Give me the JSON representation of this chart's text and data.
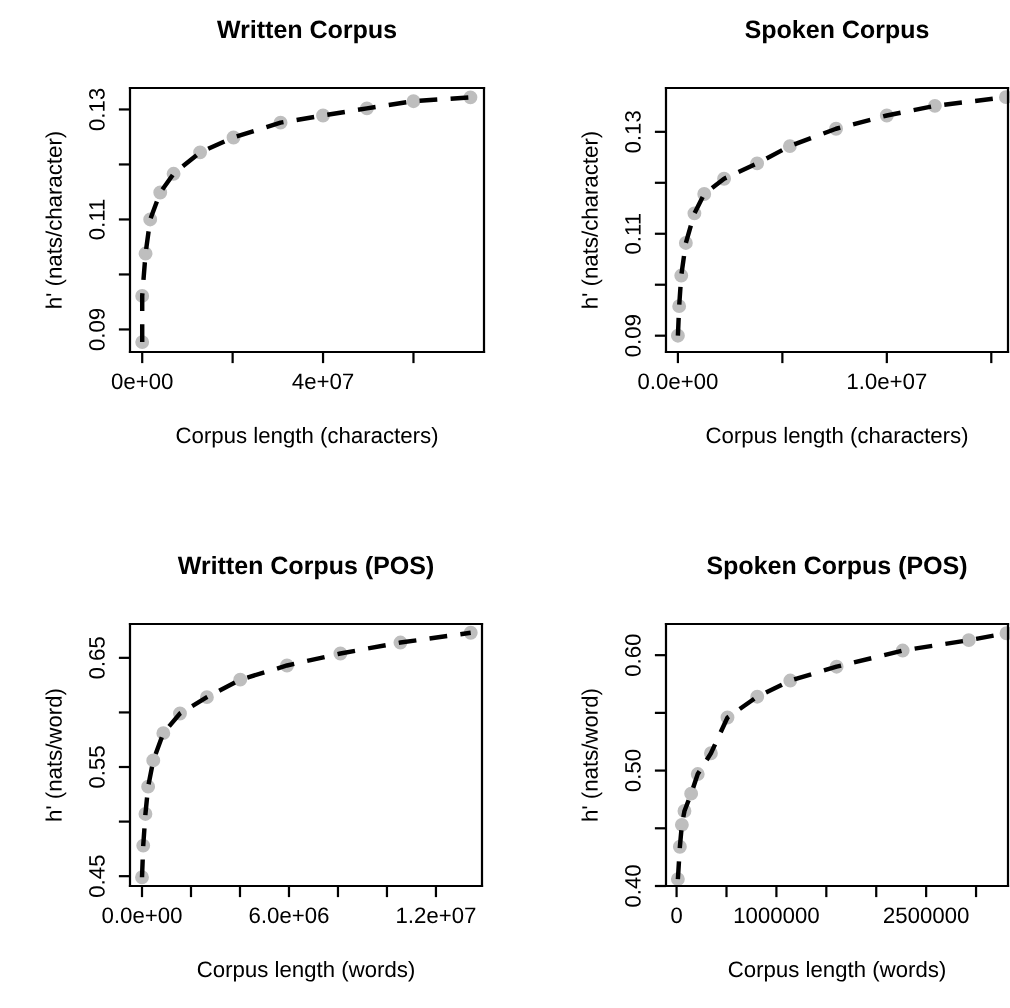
{
  "chart_data": [
    {
      "type": "line",
      "title": "Written Corpus",
      "xlabel": "Corpus length (characters)",
      "ylabel": "h' (nats/character)",
      "xlim": [
        -2700000,
        75600000
      ],
      "ylim": [
        0.0859,
        0.1339
      ],
      "xticks": [
        {
          "value": 0,
          "label": "0e+00"
        },
        {
          "value": 20000000,
          "label": null
        },
        {
          "value": 40000000,
          "label": "4e+07"
        },
        {
          "value": 60000000,
          "label": null
        }
      ],
      "yticks": [
        0.09,
        {
          "value": 0.1,
          "label": null
        },
        0.11,
        {
          "value": 0.12,
          "label": null
        },
        0.13
      ],
      "x": [
        0,
        0,
        740000,
        1770000,
        3990000,
        6940000,
        12800000,
        20200000,
        30600000,
        40000000,
        49700000,
        60000000,
        72600000
      ],
      "series": [
        {
          "type": "scatter",
          "color": "#bebebe",
          "marker": "circle",
          "values": [
            0.0877,
            0.0961,
            0.1038,
            0.11,
            0.1149,
            0.1183,
            0.1222,
            0.1249,
            0.1276,
            0.1289,
            0.1302,
            0.1315,
            0.1322
          ]
        },
        {
          "color": "#000000",
          "line_style": "dashed",
          "values": [
            0.0877,
            0.0961,
            0.1038,
            0.11,
            0.1149,
            0.1183,
            0.1222,
            0.1249,
            0.1276,
            0.1289,
            0.1302,
            0.1315,
            0.1322
          ]
        }
      ]
    },
    {
      "type": "line",
      "title": "Spoken Corpus",
      "xlabel": "Corpus length (characters)",
      "ylabel": "h' (nats/character)",
      "xlim": [
        -570000,
        15800000
      ],
      "ylim": [
        0.0868,
        0.1386
      ],
      "xticks": [
        {
          "value": 0,
          "label": "0.0e+00"
        },
        {
          "value": 5000000,
          "label": null
        },
        {
          "value": 10000000,
          "label": "1.0e+07"
        },
        {
          "value": 15000000,
          "label": null
        }
      ],
      "yticks": [
        0.09,
        {
          "value": 0.1,
          "label": null
        },
        0.11,
        {
          "value": 0.12,
          "label": null
        },
        0.13
      ],
      "x": [
        0,
        60000,
        160000,
        380000,
        790000,
        1260000,
        2210000,
        3790000,
        5360000,
        7570000,
        10000000,
        12300000,
        15700000
      ],
      "series": [
        {
          "type": "scatter",
          "color": "#bebebe",
          "marker": "circle",
          "values": [
            0.09,
            0.0958,
            0.1018,
            0.1082,
            0.114,
            0.1178,
            0.1208,
            0.1238,
            0.1272,
            0.1306,
            0.1332,
            0.1351,
            0.1368
          ]
        },
        {
          "color": "#000000",
          "line_style": "dashed",
          "values": [
            0.09,
            0.0958,
            0.1018,
            0.1082,
            0.114,
            0.1178,
            0.1208,
            0.1238,
            0.1272,
            0.1306,
            0.1332,
            0.1351,
            0.1368
          ]
        }
      ]
    },
    {
      "type": "line",
      "title": "Written Corpus (POS)",
      "xlabel": "Corpus length (words)",
      "ylabel": "h' (nats/word)",
      "xlim": [
        -490000,
        13880000
      ],
      "ylim": [
        0.441,
        0.681
      ],
      "xticks": [
        {
          "value": 0,
          "label": "0.0e+00"
        },
        {
          "value": 2000000,
          "label": null
        },
        {
          "value": 4000000,
          "label": null
        },
        {
          "value": 6000000,
          "label": "6.0e+06"
        },
        {
          "value": 8000000,
          "label": null
        },
        {
          "value": 10000000,
          "label": null
        },
        {
          "value": 12000000,
          "label": "1.2e+07"
        }
      ],
      "yticks": [
        0.45,
        {
          "value": 0.5,
          "label": null
        },
        0.55,
        {
          "value": 0.6,
          "label": null
        },
        0.65
      ],
      "x": [
        0,
        50000,
        140000,
        250000,
        460000,
        870000,
        1550000,
        2650000,
        4010000,
        5920000,
        8100000,
        10550000,
        13420000
      ],
      "series": [
        {
          "type": "scatter",
          "color": "#bebebe",
          "marker": "circle",
          "values": [
            0.449,
            0.478,
            0.507,
            0.532,
            0.556,
            0.581,
            0.599,
            0.614,
            0.63,
            0.643,
            0.654,
            0.664,
            0.673
          ]
        },
        {
          "color": "#000000",
          "line_style": "dashed",
          "values": [
            0.449,
            0.478,
            0.507,
            0.532,
            0.556,
            0.581,
            0.599,
            0.614,
            0.63,
            0.643,
            0.654,
            0.664,
            0.673
          ]
        }
      ]
    },
    {
      "type": "line",
      "title": "Spoken Corpus (POS)",
      "xlabel": "Corpus length (words)",
      "ylabel": "h' (nats/word)",
      "xlim": [
        -106000,
        3320000
      ],
      "ylim": [
        0.4,
        0.627
      ],
      "xticks": [
        0,
        {
          "value": 500000,
          "label": null
        },
        1000000,
        {
          "value": 1500000,
          "label": null
        },
        {
          "value": 2000000,
          "label": null
        },
        2500000,
        {
          "value": 3000000,
          "label": null
        }
      ],
      "yticks": [
        {
          "value": 0.4,
          "label": "0.40"
        },
        {
          "value": 0.45,
          "label": null
        },
        {
          "value": 0.5,
          "label": "0.50"
        },
        {
          "value": 0.55,
          "label": null
        },
        {
          "value": 0.6,
          "label": "0.60"
        }
      ],
      "x": [
        13000,
        33000,
        53000,
        79000,
        146000,
        212000,
        344000,
        510000,
        808000,
        1139000,
        1603000,
        2265000,
        2927000,
        3305000
      ],
      "series": [
        {
          "type": "scatter",
          "color": "#bebebe",
          "marker": "circle",
          "values": [
            0.406,
            0.434,
            0.453,
            0.465,
            0.48,
            0.497,
            0.515,
            0.546,
            0.564,
            0.578,
            0.59,
            0.604,
            0.613,
            0.619
          ]
        },
        {
          "color": "#000000",
          "line_style": "dashed",
          "values": [
            0.406,
            0.434,
            0.453,
            0.465,
            0.48,
            0.497,
            0.515,
            0.546,
            0.564,
            0.578,
            0.59,
            0.604,
            0.613,
            0.619
          ]
        }
      ]
    }
  ]
}
